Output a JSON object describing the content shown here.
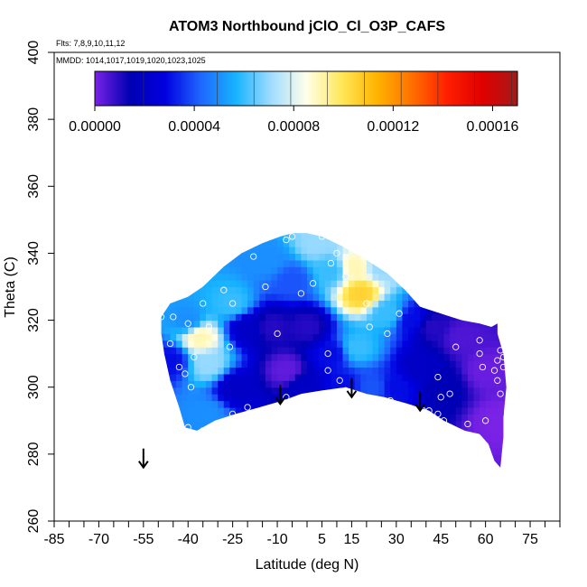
{
  "chart_data": {
    "type": "heatmap",
    "title": "ATOM3 Northbound jClO_Cl_O3P_CAFS",
    "flights_label": "Flts: 7,8,9,10,11,12",
    "mmdd_label": "MMDD: 1014,1017,1019,1020,1023,1025",
    "xlabel": "Latitude (deg N)",
    "ylabel": "Theta (C)",
    "xlim": [
      -85,
      85
    ],
    "ylim": [
      260,
      400
    ],
    "x_ticks": [
      -85,
      -70,
      -55,
      -40,
      -25,
      -10,
      5,
      15,
      30,
      45,
      60,
      75
    ],
    "y_ticks": [
      260,
      280,
      300,
      320,
      340,
      360,
      380,
      400
    ],
    "colorbar": {
      "min": 0,
      "max": 0.00017,
      "tick_values": [
        0,
        4e-05,
        8e-05,
        0.00012,
        0.00016
      ],
      "tick_labels": [
        "0.00000",
        "0.00004",
        "0.00008",
        "0.00012",
        "0.00016"
      ],
      "stops": [
        "#7a22e6",
        "#0000b3",
        "#0000e0",
        "#1f66ff",
        "#17b3ff",
        "#9fdcff",
        "#ffffea",
        "#ffe85a",
        "#ffb400",
        "#ff7000",
        "#ff1e00",
        "#e00000",
        "#a51a1a"
      ]
    },
    "field_polygon": [
      [
        -49,
        321
      ],
      [
        -46,
        325
      ],
      [
        -40,
        327
      ],
      [
        -35,
        330
      ],
      [
        -28,
        336
      ],
      [
        -22,
        340
      ],
      [
        -15,
        343
      ],
      [
        -9,
        345
      ],
      [
        -5,
        346
      ],
      [
        0,
        346
      ],
      [
        5,
        345
      ],
      [
        12,
        342
      ],
      [
        20,
        338
      ],
      [
        27,
        334
      ],
      [
        33,
        329
      ],
      [
        38,
        324
      ],
      [
        45,
        322
      ],
      [
        52,
        320
      ],
      [
        58,
        319
      ],
      [
        62,
        318
      ],
      [
        64,
        319
      ],
      [
        64,
        316
      ],
      [
        66,
        310
      ],
      [
        67,
        300
      ],
      [
        66,
        291
      ],
      [
        66,
        285
      ],
      [
        65,
        276
      ],
      [
        63,
        278
      ],
      [
        61,
        283
      ],
      [
        58,
        286
      ],
      [
        53,
        287
      ],
      [
        46,
        290
      ],
      [
        41,
        293
      ],
      [
        34,
        295
      ],
      [
        26,
        297
      ],
      [
        20,
        298
      ],
      [
        13,
        300
      ],
      [
        5,
        299
      ],
      [
        -2,
        298
      ],
      [
        -8,
        296
      ],
      [
        -16,
        294
      ],
      [
        -24,
        292
      ],
      [
        -31,
        290
      ],
      [
        -37,
        287
      ],
      [
        -41,
        288
      ],
      [
        -43,
        294
      ],
      [
        -46,
        302
      ],
      [
        -48,
        310
      ],
      [
        -49,
        316
      ]
    ],
    "field_values": [
      {
        "lat": -46,
        "theta": 308,
        "v": 3e-05
      },
      {
        "lat": -40,
        "theta": 320,
        "v": 5e-05
      },
      {
        "lat": -36,
        "theta": 315,
        "v": 9e-05
      },
      {
        "lat": -33,
        "theta": 307,
        "v": 7e-05
      },
      {
        "lat": -34,
        "theta": 292,
        "v": 5e-05
      },
      {
        "lat": -25,
        "theta": 325,
        "v": 6e-05
      },
      {
        "lat": -24,
        "theta": 300,
        "v": 2e-05
      },
      {
        "lat": -20,
        "theta": 318,
        "v": 2e-05
      },
      {
        "lat": -13,
        "theta": 338,
        "v": 5e-05
      },
      {
        "lat": -12,
        "theta": 318,
        "v": 1e-05
      },
      {
        "lat": -7,
        "theta": 305,
        "v": 3e-06
      },
      {
        "lat": -5,
        "theta": 332,
        "v": 4e-05
      },
      {
        "lat": 0,
        "theta": 318,
        "v": 1e-05
      },
      {
        "lat": -1,
        "theta": 300,
        "v": 2e-05
      },
      {
        "lat": 3,
        "theta": 343,
        "v": 7e-05
      },
      {
        "lat": 8,
        "theta": 335,
        "v": 6e-05
      },
      {
        "lat": 8,
        "theta": 310,
        "v": 3e-05
      },
      {
        "lat": 12,
        "theta": 300,
        "v": 3e-05
      },
      {
        "lat": 16,
        "theta": 336,
        "v": 9e-05
      },
      {
        "lat": 18,
        "theta": 328,
        "v": 0.000105
      },
      {
        "lat": 17,
        "theta": 312,
        "v": 6e-05
      },
      {
        "lat": 22,
        "theta": 300,
        "v": 4e-05
      },
      {
        "lat": 25,
        "theta": 336,
        "v": 7e-05
      },
      {
        "lat": 27,
        "theta": 322,
        "v": 6e-05
      },
      {
        "lat": 30,
        "theta": 300,
        "v": 3e-05
      },
      {
        "lat": 35,
        "theta": 320,
        "v": 3e-05
      },
      {
        "lat": 38,
        "theta": 306,
        "v": 2e-05
      },
      {
        "lat": 42,
        "theta": 318,
        "v": 1e-05
      },
      {
        "lat": 46,
        "theta": 300,
        "v": 1.5e-05
      },
      {
        "lat": 52,
        "theta": 315,
        "v": 5e-06
      },
      {
        "lat": 60,
        "theta": 305,
        "v": 2e-06
      },
      {
        "lat": 64,
        "theta": 290,
        "v": 0.0
      }
    ],
    "observations": [
      [
        -49,
        321
      ],
      [
        -45,
        321
      ],
      [
        -46,
        313
      ],
      [
        -43,
        306
      ],
      [
        -40,
        319
      ],
      [
        -38,
        309
      ],
      [
        -28,
        329
      ],
      [
        -35,
        325
      ],
      [
        -33,
        318
      ],
      [
        -41,
        304
      ],
      [
        -39,
        300
      ],
      [
        -40,
        288
      ],
      [
        -35,
        287
      ],
      [
        -25,
        292
      ],
      [
        -20,
        294
      ],
      [
        -25,
        325
      ],
      [
        -26,
        312
      ],
      [
        -22,
        343
      ],
      [
        -7,
        344
      ],
      [
        -18,
        339
      ],
      [
        -14,
        330
      ],
      [
        -10,
        316
      ],
      [
        -7,
        297
      ],
      [
        -2,
        328
      ],
      [
        2,
        331
      ],
      [
        -5,
        345
      ],
      [
        5,
        345
      ],
      [
        8,
        337
      ],
      [
        13,
        333
      ],
      [
        10,
        340
      ],
      [
        7,
        310
      ],
      [
        7,
        305
      ],
      [
        11,
        302
      ],
      [
        13,
        299
      ],
      [
        15,
        297
      ],
      [
        20,
        325
      ],
      [
        21,
        318
      ],
      [
        27,
        316
      ],
      [
        31,
        322
      ],
      [
        34,
        330
      ],
      [
        28,
        296
      ],
      [
        36,
        293
      ],
      [
        39,
        293
      ],
      [
        41,
        293
      ],
      [
        44,
        303
      ],
      [
        45,
        297
      ],
      [
        44,
        292
      ],
      [
        46,
        290
      ],
      [
        48,
        298
      ],
      [
        50,
        312
      ],
      [
        44,
        327
      ],
      [
        47,
        328
      ],
      [
        57,
        323
      ],
      [
        58,
        314
      ],
      [
        62,
        320
      ],
      [
        58,
        310
      ],
      [
        59,
        306
      ],
      [
        63,
        305
      ],
      [
        64,
        302
      ],
      [
        65,
        298
      ],
      [
        64,
        308
      ],
      [
        66,
        309
      ],
      [
        54,
        289
      ],
      [
        60,
        290
      ],
      [
        57,
        284
      ],
      [
        54,
        285
      ],
      [
        66,
        306
      ],
      [
        65,
        311
      ]
    ],
    "arrows": [
      {
        "lat": -55,
        "theta": 276
      },
      {
        "lat": -9,
        "theta": 295
      },
      {
        "lat": 15,
        "theta": 297
      },
      {
        "lat": 38,
        "theta": 293
      }
    ]
  }
}
